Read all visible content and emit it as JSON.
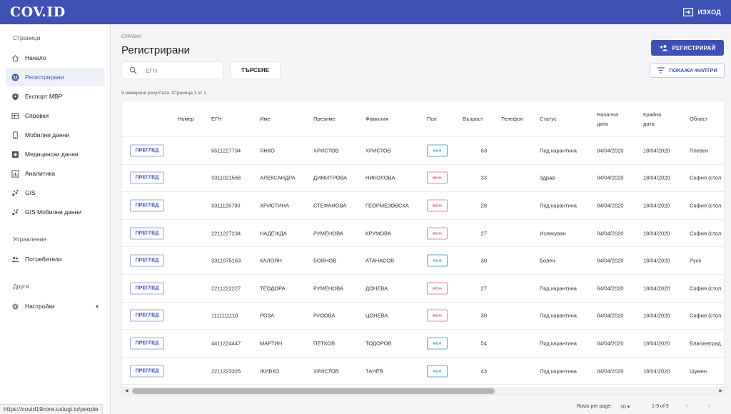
{
  "app": {
    "logo": "COV.ID",
    "logout_label": "ИЗХОД"
  },
  "sidebar": {
    "section_pages": "Страници",
    "section_management": "Управление",
    "section_other": "Други",
    "items": [
      {
        "label": "Начало",
        "icon": "home-icon"
      },
      {
        "label": "Регистрирани",
        "icon": "people-icon",
        "active": true
      },
      {
        "label": "Експорт МВР",
        "icon": "shield-icon"
      },
      {
        "label": "Справки",
        "icon": "table-icon"
      },
      {
        "label": "Мобилни данни",
        "icon": "phone-icon"
      },
      {
        "label": "Медицински данни",
        "icon": "medical-icon"
      },
      {
        "label": "Аналитика",
        "icon": "chart-icon"
      },
      {
        "label": "GIS",
        "icon": "scatter-icon"
      },
      {
        "label": "GIS Мобилни данни",
        "icon": "scatter-icon"
      }
    ],
    "management_items": [
      {
        "label": "Потребители",
        "icon": "users-icon"
      }
    ],
    "other_items": [
      {
        "label": "Настройки",
        "icon": "gear-icon"
      }
    ]
  },
  "main": {
    "breadcrumb": "СПРАВКИ",
    "title": "Регистрирани",
    "register_button": "РЕГИСТРИРАЙ",
    "search_placeholder": "ЕГН",
    "search_button": "ТЪРСЕНЕ",
    "filters_button": "ПОКАЖИ ФИЛТРИ",
    "results_text": "9 намерени резултата. Страница 1 от 1"
  },
  "table": {
    "headers": {
      "number": "Номер",
      "egn": "ЕГН",
      "name": "Име",
      "middle": "Презиме",
      "last": "Фамилия",
      "sex": "Пол",
      "age": "Възраст",
      "phone": "Телефон",
      "status": "Статус",
      "start_1": "Начална",
      "start_2": "дата",
      "end_1": "Крайна",
      "end_2": "дата",
      "region": "Област"
    },
    "view_label": "ПРЕГЛЕД",
    "rows": [
      {
        "egn": "5511227734",
        "name": "ЯНКО",
        "middle": "ХРИСТОВ",
        "last": "ХРИСТОВ",
        "sex": "МЪЖ",
        "age": "53",
        "status": "Под карантина",
        "start": "04/04/2020",
        "end": "18/04/2020",
        "region": "Плевен"
      },
      {
        "egn": "3311021568",
        "name": "АЛЕКСАНДРА",
        "middle": "ДИМИТРОВА",
        "last": "НИКОЛОВА",
        "sex": "ЖЕНА",
        "age": "33",
        "status": "Здрав",
        "start": "04/04/2020",
        "end": "18/04/2020",
        "region": "София (стол"
      },
      {
        "egn": "3311126790",
        "name": "ХРИСТИНА",
        "middle": "СТЕФАНОВА",
        "last": "ГЕОРМЕЗОВСКА",
        "sex": "ЖЕНА",
        "age": "28",
        "status": "Под карантина",
        "start": "04/04/2020",
        "end": "18/04/2020",
        "region": "София (стол"
      },
      {
        "egn": "2211227234",
        "name": "НАДЕЖДА",
        "middle": "РУМЕНОВА",
        "last": "КРУМОВА",
        "sex": "ЖЕНА",
        "age": "27",
        "status": "Излекуван",
        "start": "04/04/2020",
        "end": "18/04/2020",
        "region": "София (стол"
      },
      {
        "egn": "3311075163",
        "name": "КАЛОЯН",
        "middle": "БОЯНОВ",
        "last": "АТАНАСОВ",
        "sex": "МЪЖ",
        "age": "30",
        "status": "Болен",
        "start": "04/04/2020",
        "end": "18/04/2020",
        "region": "Русе"
      },
      {
        "egn": "2211222227",
        "name": "ТЕОДОРА",
        "middle": "РУМЕНОВА",
        "last": "ДОНЕВА",
        "sex": "ЖЕНА",
        "age": "27",
        "status": "Под карантина",
        "start": "04/04/2020",
        "end": "18/04/2020",
        "region": "София (стол"
      },
      {
        "egn": "1111111110",
        "name": "РОЗА",
        "middle": "РИЗОВА",
        "last": "ЦОНЕВА",
        "sex": "ЖЕНА",
        "age": "30",
        "status": "Под карантина",
        "start": "04/04/2020",
        "end": "18/04/2020",
        "region": "София (стол"
      },
      {
        "egn": "4411224447",
        "name": "МАРТИН",
        "middle": "ПЕТКОВ",
        "last": "ТОДОРОВ",
        "sex": "МЪЖ",
        "age": "54",
        "status": "Под карантина",
        "start": "04/04/2020",
        "end": "18/04/2020",
        "region": "Благоевград"
      },
      {
        "egn": "2211223326",
        "name": "ЖИВКО",
        "middle": "ХРИСТОВ",
        "last": "ТАНЕВ",
        "sex": "МЪЖ",
        "age": "43",
        "status": "Под карантина",
        "start": "04/04/2020",
        "end": "18/04/2020",
        "region": "Шумен"
      }
    ]
  },
  "pagination": {
    "rows_per_page_label": "Rows per page:",
    "rows_per_page_value": "10",
    "range": "1-9 of 9"
  },
  "status_bar": {
    "url": "https://covid19core.uslugi.io/people"
  },
  "colors": {
    "primary": "#3f51b5",
    "male": "#2196c9",
    "female": "#d64b6a"
  }
}
